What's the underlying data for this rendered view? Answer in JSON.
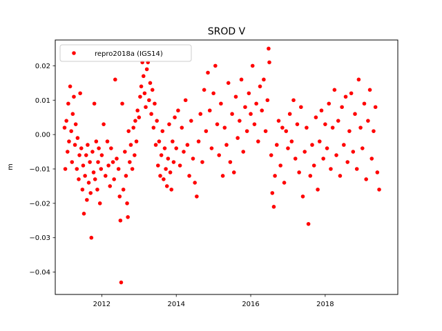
{
  "chart_data": {
    "type": "scatter",
    "title": "SROD V",
    "xlabel": "",
    "ylabel": "m",
    "xlim": [
      2010.75,
      2019.95
    ],
    "ylim": [
      -0.0465,
      0.0275
    ],
    "x_ticks": [
      2012,
      2014,
      2016,
      2018
    ],
    "x_tick_labels": [
      "2012",
      "2014",
      "2016",
      "2018"
    ],
    "y_ticks": [
      -0.04,
      -0.03,
      -0.02,
      -0.01,
      0.0,
      0.01,
      0.02
    ],
    "y_tick_labels": [
      "−0.04",
      "−0.03",
      "−0.02",
      "−0.01",
      "0.00",
      "0.01",
      "0.02"
    ],
    "grid": false,
    "legend": {
      "position": "top-left",
      "entries": [
        "repro2018a (IGS14)"
      ]
    },
    "colors": {
      "series": "#ff0000",
      "axes": "#000000",
      "background": "#ffffff"
    },
    "series": [
      {
        "name": "repro2018a (IGS14)",
        "marker": "circle",
        "points": [
          [
            2011.0,
            0.002
          ],
          [
            2011.02,
            -0.01
          ],
          [
            2011.05,
            0.004
          ],
          [
            2011.08,
            -0.005
          ],
          [
            2011.1,
            0.009
          ],
          [
            2011.12,
            -0.002
          ],
          [
            2011.15,
            0.014
          ],
          [
            2011.18,
            0.001
          ],
          [
            2011.2,
            -0.008
          ],
          [
            2011.22,
            0.006
          ],
          [
            2011.25,
            0.011
          ],
          [
            2011.28,
            -0.003
          ],
          [
            2011.3,
            0.003
          ],
          [
            2011.33,
            -0.01
          ],
          [
            2011.35,
            -0.001
          ],
          [
            2011.38,
            -0.013
          ],
          [
            2011.4,
            -0.006
          ],
          [
            2011.42,
            0.012
          ],
          [
            2011.45,
            -0.004
          ],
          [
            2011.48,
            -0.016
          ],
          [
            2011.5,
            -0.009
          ],
          [
            2011.52,
            -0.023
          ],
          [
            2011.55,
            -0.012
          ],
          [
            2011.58,
            -0.006
          ],
          [
            2011.6,
            -0.019
          ],
          [
            2011.62,
            -0.003
          ],
          [
            2011.65,
            -0.014
          ],
          [
            2011.68,
            -0.008
          ],
          [
            2011.7,
            -0.017
          ],
          [
            2011.72,
            -0.03
          ],
          [
            2011.75,
            -0.005
          ],
          [
            2011.78,
            -0.011
          ],
          [
            2011.8,
            0.009
          ],
          [
            2011.82,
            -0.013
          ],
          [
            2011.85,
            -0.002
          ],
          [
            2011.88,
            -0.016
          ],
          [
            2011.9,
            -0.008
          ],
          [
            2011.92,
            -0.004
          ],
          [
            2011.95,
            -0.02
          ],
          [
            2011.98,
            -0.01
          ],
          [
            2012.0,
            -0.006
          ],
          [
            2012.05,
            0.003
          ],
          [
            2012.1,
            -0.012
          ],
          [
            2012.15,
            -0.002
          ],
          [
            2012.18,
            -0.009
          ],
          [
            2012.22,
            -0.015
          ],
          [
            2012.25,
            -0.004
          ],
          [
            2012.3,
            -0.008
          ],
          [
            2012.33,
            -0.013
          ],
          [
            2012.36,
            0.016
          ],
          [
            2012.4,
            -0.007
          ],
          [
            2012.45,
            -0.01
          ],
          [
            2012.48,
            -0.018
          ],
          [
            2012.5,
            -0.025
          ],
          [
            2012.52,
            -0.043
          ],
          [
            2012.55,
            0.009
          ],
          [
            2012.58,
            -0.016
          ],
          [
            2012.62,
            -0.005
          ],
          [
            2012.65,
            -0.012
          ],
          [
            2012.68,
            -0.02
          ],
          [
            2012.7,
            -0.024
          ],
          [
            2012.72,
            0.001
          ],
          [
            2012.75,
            -0.008
          ],
          [
            2012.78,
            -0.003
          ],
          [
            2012.82,
            -0.01
          ],
          [
            2012.85,
            0.002
          ],
          [
            2012.88,
            -0.006
          ],
          [
            2012.9,
            0.004
          ],
          [
            2012.93,
            -0.002
          ],
          [
            2012.96,
            0.007
          ],
          [
            2013.0,
            0.005
          ],
          [
            2013.03,
            0.011
          ],
          [
            2013.06,
            0.014
          ],
          [
            2013.09,
            0.021
          ],
          [
            2013.12,
            0.017
          ],
          [
            2013.15,
            0.012
          ],
          [
            2013.18,
            0.008
          ],
          [
            2013.21,
            0.019
          ],
          [
            2013.24,
            0.021
          ],
          [
            2013.27,
            0.01
          ],
          [
            2013.3,
            0.015
          ],
          [
            2013.33,
            0.006
          ],
          [
            2013.36,
            0.013
          ],
          [
            2013.39,
            0.002
          ],
          [
            2013.42,
            0.009
          ],
          [
            2013.45,
            -0.003
          ],
          [
            2013.48,
            0.004
          ],
          [
            2013.51,
            -0.009
          ],
          [
            2013.54,
            -0.002
          ],
          [
            2013.57,
            -0.012
          ],
          [
            2013.6,
            -0.006
          ],
          [
            2013.63,
            0.001
          ],
          [
            2013.66,
            -0.013
          ],
          [
            2013.69,
            -0.004
          ],
          [
            2013.72,
            -0.01
          ],
          [
            2013.75,
            -0.015
          ],
          [
            2013.78,
            -0.007
          ],
          [
            2013.81,
            0.003
          ],
          [
            2013.84,
            -0.011
          ],
          [
            2013.87,
            -0.016
          ],
          [
            2013.9,
            -0.002
          ],
          [
            2013.93,
            -0.008
          ],
          [
            2013.96,
            0.005
          ],
          [
            2014.0,
            -0.004
          ],
          [
            2014.05,
            0.007
          ],
          [
            2014.1,
            -0.009
          ],
          [
            2014.15,
            0.002
          ],
          [
            2014.2,
            -0.005
          ],
          [
            2014.25,
            0.01
          ],
          [
            2014.3,
            -0.003
          ],
          [
            2014.35,
            -0.012
          ],
          [
            2014.4,
            0.004
          ],
          [
            2014.45,
            -0.007
          ],
          [
            2014.5,
            -0.014
          ],
          [
            2014.55,
            -0.018
          ],
          [
            2014.6,
            -0.002
          ],
          [
            2014.65,
            0.006
          ],
          [
            2014.7,
            -0.008
          ],
          [
            2014.75,
            0.013
          ],
          [
            2014.8,
            0.001
          ],
          [
            2014.85,
            0.018
          ],
          [
            2014.9,
            0.007
          ],
          [
            2014.95,
            -0.004
          ],
          [
            2015.0,
            0.012
          ],
          [
            2015.05,
            0.02
          ],
          [
            2015.1,
            0.003
          ],
          [
            2015.15,
            -0.006
          ],
          [
            2015.2,
            0.009
          ],
          [
            2015.25,
            -0.012
          ],
          [
            2015.3,
            0.002
          ],
          [
            2015.35,
            -0.003
          ],
          [
            2015.4,
            0.015
          ],
          [
            2015.45,
            -0.008
          ],
          [
            2015.5,
            0.006
          ],
          [
            2015.55,
            -0.011
          ],
          [
            2015.6,
            0.011
          ],
          [
            2015.65,
            -0.001
          ],
          [
            2015.7,
            0.004
          ],
          [
            2015.75,
            0.016
          ],
          [
            2015.8,
            -0.005
          ],
          [
            2015.85,
            0.008
          ],
          [
            2015.9,
            0.001
          ],
          [
            2015.95,
            0.012
          ],
          [
            2016.0,
            0.006
          ],
          [
            2016.05,
            0.02
          ],
          [
            2016.1,
            0.003
          ],
          [
            2016.15,
            0.009
          ],
          [
            2016.2,
            -0.002
          ],
          [
            2016.25,
            0.014
          ],
          [
            2016.3,
            0.007
          ],
          [
            2016.35,
            0.016
          ],
          [
            2016.4,
            0.001
          ],
          [
            2016.45,
            0.01
          ],
          [
            2016.48,
            0.025
          ],
          [
            2016.5,
            0.021
          ],
          [
            2016.55,
            -0.006
          ],
          [
            2016.58,
            -0.017
          ],
          [
            2016.62,
            -0.021
          ],
          [
            2016.65,
            -0.012
          ],
          [
            2016.7,
            -0.003
          ],
          [
            2016.75,
            0.004
          ],
          [
            2016.8,
            -0.009
          ],
          [
            2016.85,
            0.002
          ],
          [
            2016.9,
            -0.014
          ],
          [
            2016.95,
            0.001
          ],
          [
            2017.0,
            -0.004
          ],
          [
            2017.05,
            0.006
          ],
          [
            2017.1,
            -0.002
          ],
          [
            2017.15,
            0.01
          ],
          [
            2017.2,
            -0.007
          ],
          [
            2017.25,
            0.003
          ],
          [
            2017.3,
            -0.011
          ],
          [
            2017.35,
            0.008
          ],
          [
            2017.4,
            -0.018
          ],
          [
            2017.45,
            -0.005
          ],
          [
            2017.5,
            0.002
          ],
          [
            2017.55,
            -0.026
          ],
          [
            2017.6,
            -0.012
          ],
          [
            2017.65,
            -0.003
          ],
          [
            2017.7,
            -0.009
          ],
          [
            2017.75,
            0.005
          ],
          [
            2017.8,
            -0.016
          ],
          [
            2017.85,
            -0.002
          ],
          [
            2017.9,
            0.007
          ],
          [
            2017.95,
            -0.007
          ],
          [
            2018.0,
            0.003
          ],
          [
            2018.05,
            -0.004
          ],
          [
            2018.1,
            0.009
          ],
          [
            2018.15,
            -0.01
          ],
          [
            2018.2,
            0.002
          ],
          [
            2018.25,
            0.013
          ],
          [
            2018.3,
            -0.006
          ],
          [
            2018.35,
            0.004
          ],
          [
            2018.4,
            -0.012
          ],
          [
            2018.45,
            0.008
          ],
          [
            2018.5,
            -0.003
          ],
          [
            2018.55,
            0.011
          ],
          [
            2018.6,
            -0.008
          ],
          [
            2018.65,
            0.001
          ],
          [
            2018.7,
            0.012
          ],
          [
            2018.75,
            -0.005
          ],
          [
            2018.8,
            0.006
          ],
          [
            2018.85,
            -0.01
          ],
          [
            2018.9,
            0.016
          ],
          [
            2018.95,
            0.002
          ],
          [
            2019.0,
            -0.004
          ],
          [
            2019.05,
            0.009
          ],
          [
            2019.1,
            -0.013
          ],
          [
            2019.15,
            0.004
          ],
          [
            2019.2,
            0.013
          ],
          [
            2019.25,
            -0.007
          ],
          [
            2019.3,
            0.001
          ],
          [
            2019.35,
            0.008
          ],
          [
            2019.4,
            -0.011
          ],
          [
            2019.45,
            -0.016
          ]
        ]
      }
    ]
  }
}
